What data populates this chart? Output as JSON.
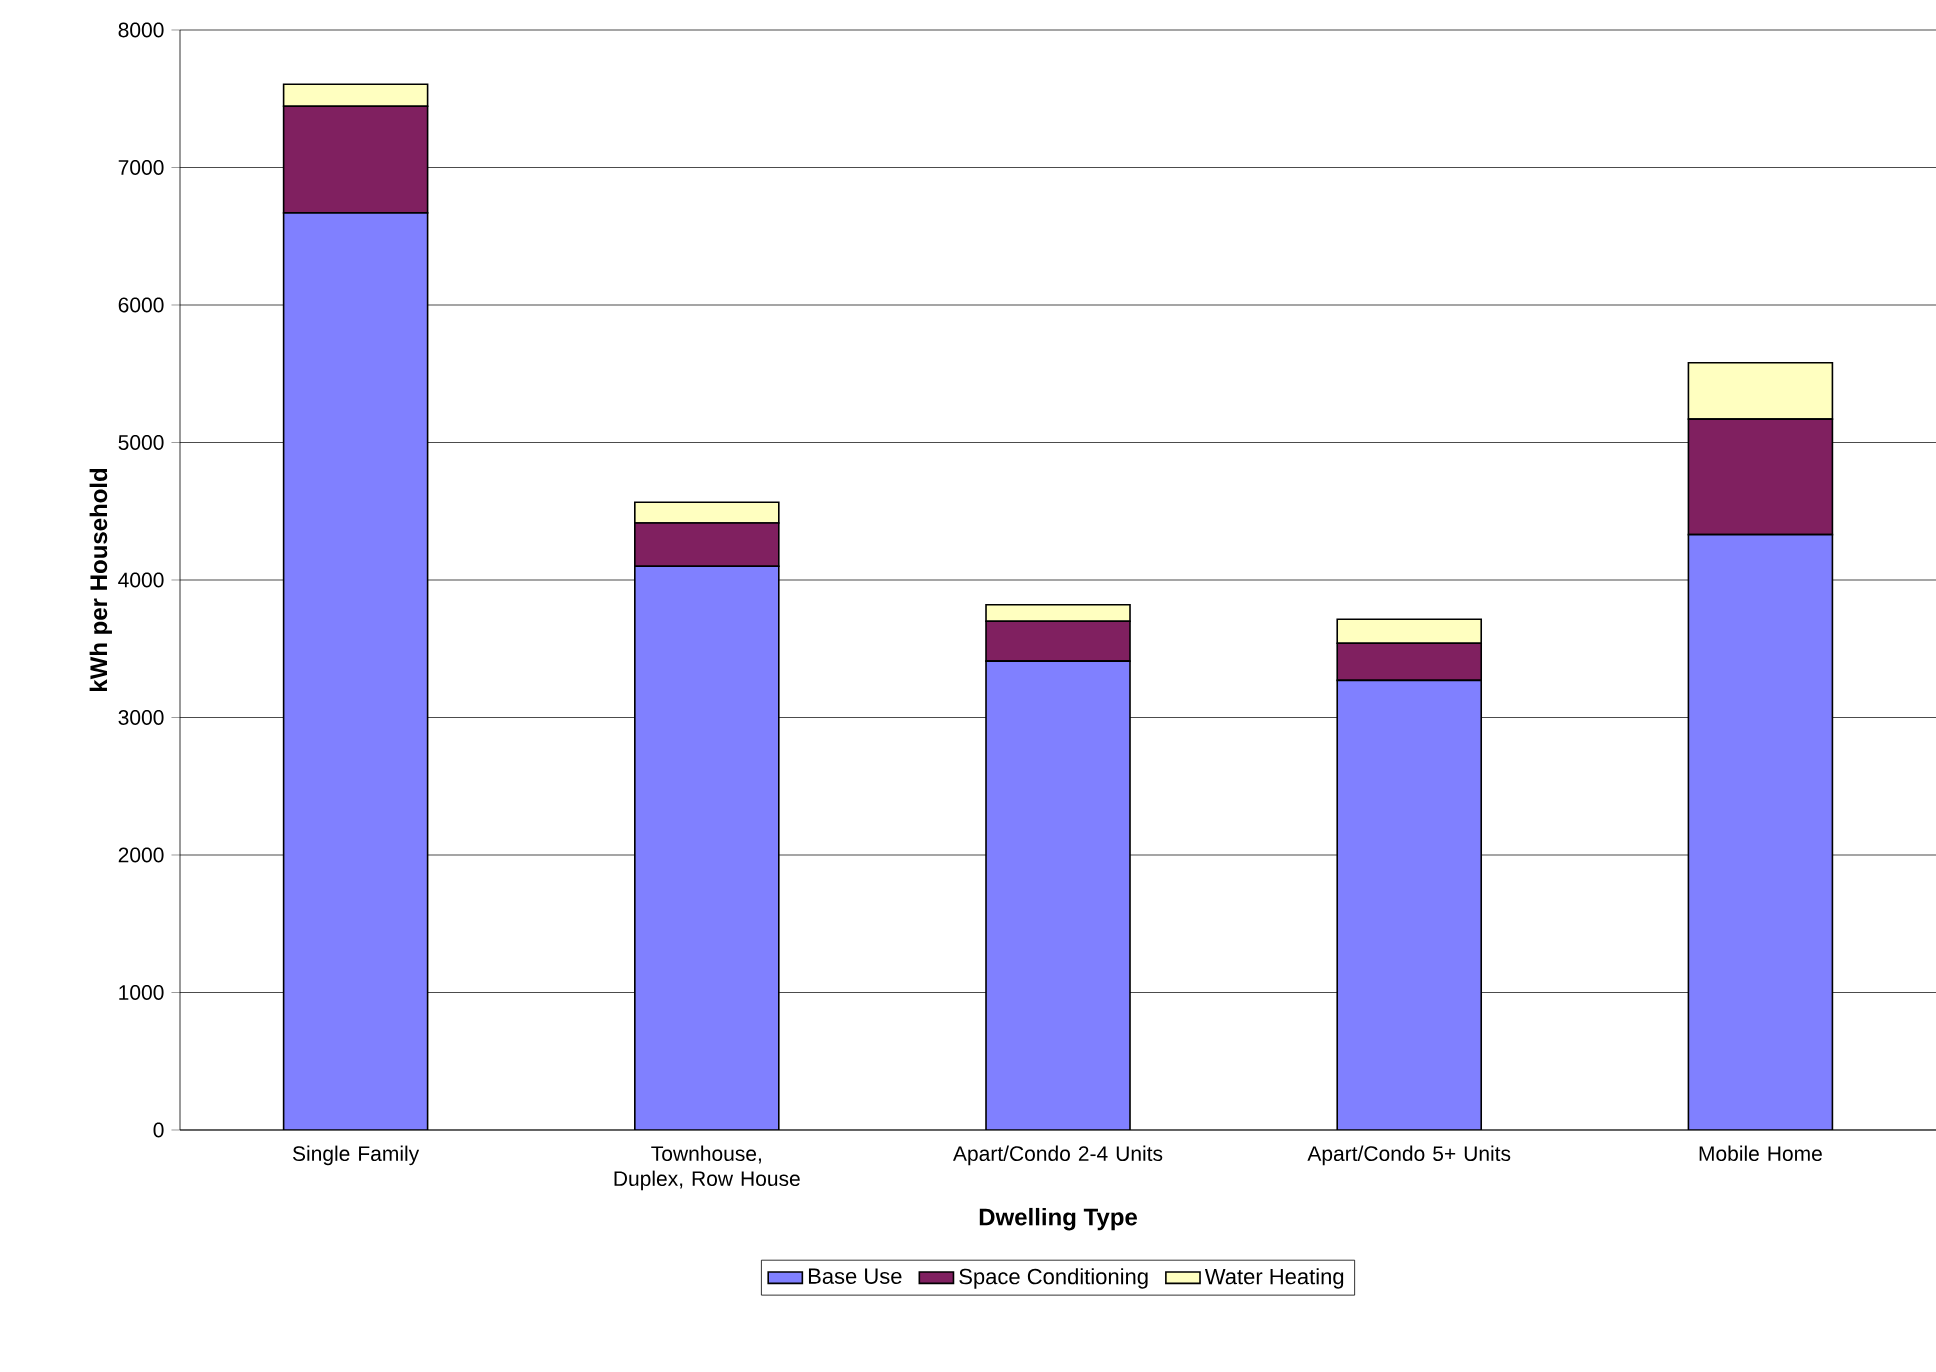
{
  "chart_data": {
    "type": "bar",
    "stacked": true,
    "xlabel": "Dwelling Type",
    "ylabel": "kWh per Household",
    "categories": [
      "Single Family",
      "Townhouse, Duplex, Row House",
      "Apart/Condo 2-4 Units",
      "Apart/Condo 5+ Units",
      "Mobile Home"
    ],
    "series": [
      {
        "name": "Base Use",
        "color": "#8080ff",
        "values": [
          6670,
          4100,
          3410,
          3270,
          4330
        ]
      },
      {
        "name": "Space Conditioning",
        "color": "#802060",
        "values": [
          775,
          315,
          290,
          270,
          840
        ]
      },
      {
        "name": "Water Heating",
        "color": "#ffffc0",
        "values": [
          160,
          150,
          120,
          175,
          410
        ]
      }
    ],
    "ylim": [
      0,
      8000
    ],
    "yticks": [
      0,
      1000,
      2000,
      3000,
      4000,
      5000,
      6000,
      7000,
      8000
    ],
    "grid": "y",
    "legend": "bottom"
  }
}
